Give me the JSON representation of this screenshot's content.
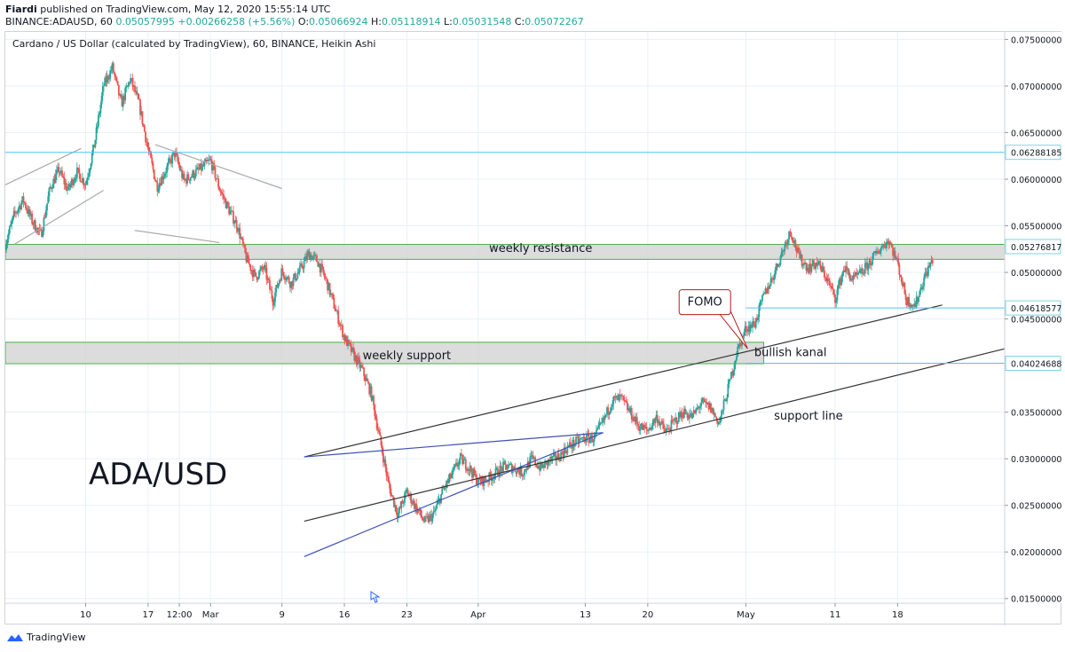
{
  "header": {
    "author": "Fiardi",
    "published_text": "published on TradingView.com, May 12, 2020 15:55:14 UTC"
  },
  "ohlc": {
    "symbol": "BINANCE:ADAUSD, 60",
    "last": "0.05057995",
    "change": "+0.00266258 (+5.56%)",
    "o_label": "O:",
    "o": "0.05066924",
    "h_label": "H:",
    "h": "0.05118914",
    "l_label": "L:",
    "l": "0.05031548",
    "c_label": "C:",
    "c": "0.05072267"
  },
  "footer": {
    "brand": "TradingView"
  },
  "colors": {
    "up": "#26a69a",
    "down": "#ef5350",
    "grid": "#e8f1f8",
    "axis_tag_border": "#7fd3e3"
  },
  "chart_data": {
    "type": "candlestick",
    "title": "Cardano / US Dollar (calculated by TradingView), 60, BINANCE, Heikin Ashi",
    "watermark": "ADA/USD",
    "ylim": [
      0.0145,
      0.0758
    ],
    "y_ticks": [
      "0.07500000",
      "0.07000000",
      "0.06500000",
      "0.06000000",
      "0.05500000",
      "0.05000000",
      "0.04500000",
      "0.03500000",
      "0.03000000",
      "0.02500000",
      "0.02000000",
      "0.01500000"
    ],
    "y_tick_values": [
      0.075,
      0.07,
      0.065,
      0.06,
      0.055,
      0.05,
      0.045,
      0.035,
      0.03,
      0.025,
      0.02,
      0.015
    ],
    "x_ticks": [
      {
        "label": "10",
        "day": 10
      },
      {
        "label": "17",
        "day": 17
      },
      {
        "label": "12:00",
        "day": 20.5
      },
      {
        "label": "Mar",
        "day": 24
      },
      {
        "label": "9",
        "day": 32
      },
      {
        "label": "16",
        "day": 39
      },
      {
        "label": "23",
        "day": 46
      },
      {
        "label": "Apr",
        "day": 54
      },
      {
        "label": "13",
        "day": 66
      },
      {
        "label": "20",
        "day": 73
      },
      {
        "label": "May",
        "day": 84
      },
      {
        "label": "11",
        "day": 94
      },
      {
        "label": "18",
        "day": 101
      }
    ],
    "x_domain_days": [
      1,
      113
    ],
    "price_tags": [
      {
        "label": "0.06288185",
        "value": 0.06288185,
        "line": true
      },
      {
        "label": "0.05276817",
        "value": 0.05276817,
        "line": false
      },
      {
        "label": "0.04618577",
        "value": 0.04618577,
        "line": true
      },
      {
        "label": "0.04024688",
        "value": 0.04024688,
        "line": true
      }
    ],
    "zones": [
      {
        "name": "weekly resistance",
        "from_day": 1,
        "to_day": 113,
        "low": 0.0514,
        "high": 0.053
      },
      {
        "name": "weekly support",
        "from_day": 1,
        "to_day": 86,
        "low": 0.0402,
        "high": 0.0425
      }
    ],
    "annotations": [
      {
        "text": "weekly resistance",
        "day": 61,
        "value": 0.0522
      },
      {
        "text": "weekly support",
        "day": 46,
        "value": 0.0407
      },
      {
        "text": "bullish kanal",
        "day": 89,
        "value": 0.041
      },
      {
        "text": "support line",
        "day": 91,
        "value": 0.0342
      },
      {
        "text": "FOMO",
        "day": 79.5,
        "value": 0.0468
      }
    ],
    "trendlines": [
      {
        "name": "channel-upper",
        "color": "#333333",
        "points": [
          [
            34.5,
            0.0302
          ],
          [
            106,
            0.0465
          ]
        ]
      },
      {
        "name": "channel-lower",
        "color": "#333333",
        "points": [
          [
            34.5,
            0.0233
          ],
          [
            113,
            0.0418
          ]
        ]
      },
      {
        "name": "triangle-top",
        "color": "#3f51b5",
        "points": [
          [
            34.5,
            0.0302
          ],
          [
            68,
            0.0328
          ]
        ]
      },
      {
        "name": "triangle-bottom",
        "color": "#3f51b5",
        "points": [
          [
            34.5,
            0.0195
          ],
          [
            68,
            0.0328
          ]
        ]
      },
      {
        "name": "rising-wedge-upper",
        "color": "#aaaaaa",
        "points": [
          [
            1,
            0.0594
          ],
          [
            9.5,
            0.0633
          ]
        ]
      },
      {
        "name": "rising-wedge-lower",
        "color": "#aaaaaa",
        "points": [
          [
            2,
            0.053
          ],
          [
            12,
            0.0588
          ]
        ]
      },
      {
        "name": "falling-upper",
        "color": "#aaaaaa",
        "points": [
          [
            17.8,
            0.0637
          ],
          [
            32,
            0.059
          ]
        ]
      },
      {
        "name": "falling-lower",
        "color": "#aaaaaa",
        "points": [
          [
            15.5,
            0.0545
          ],
          [
            25,
            0.0532
          ]
        ]
      }
    ],
    "price_path": [
      [
        1,
        0.053
      ],
      [
        2,
        0.0562
      ],
      [
        3,
        0.0578
      ],
      [
        4,
        0.0555
      ],
      [
        5,
        0.054
      ],
      [
        6,
        0.059
      ],
      [
        7,
        0.061
      ],
      [
        8,
        0.0588
      ],
      [
        9,
        0.0608
      ],
      [
        10,
        0.0595
      ],
      [
        11,
        0.0638
      ],
      [
        12,
        0.07
      ],
      [
        13,
        0.072
      ],
      [
        14,
        0.068
      ],
      [
        15,
        0.0708
      ],
      [
        16,
        0.068
      ],
      [
        17,
        0.0632
      ],
      [
        18,
        0.0592
      ],
      [
        19,
        0.061
      ],
      [
        20,
        0.0628
      ],
      [
        21,
        0.0598
      ],
      [
        22,
        0.0605
      ],
      [
        23,
        0.0612
      ],
      [
        24,
        0.062
      ],
      [
        25,
        0.059
      ],
      [
        26,
        0.0568
      ],
      [
        27,
        0.055
      ],
      [
        28,
        0.0515
      ],
      [
        29,
        0.0495
      ],
      [
        30,
        0.0505
      ],
      [
        31,
        0.047
      ],
      [
        32,
        0.0502
      ],
      [
        33,
        0.0488
      ],
      [
        34,
        0.0502
      ],
      [
        35,
        0.052
      ],
      [
        36,
        0.0512
      ],
      [
        37,
        0.049
      ],
      [
        38,
        0.046
      ],
      [
        39,
        0.043
      ],
      [
        40,
        0.0412
      ],
      [
        41,
        0.0395
      ],
      [
        42,
        0.037
      ],
      [
        43,
        0.032
      ],
      [
        44,
        0.027
      ],
      [
        45,
        0.024
      ],
      [
        46,
        0.0265
      ],
      [
        47,
        0.0248
      ],
      [
        48,
        0.0232
      ],
      [
        49,
        0.024
      ],
      [
        50,
        0.0265
      ],
      [
        51,
        0.0282
      ],
      [
        52,
        0.03
      ],
      [
        53,
        0.029
      ],
      [
        54,
        0.0275
      ],
      [
        55,
        0.0278
      ],
      [
        56,
        0.0285
      ],
      [
        57,
        0.0292
      ],
      [
        58,
        0.029
      ],
      [
        59,
        0.0285
      ],
      [
        60,
        0.03
      ],
      [
        61,
        0.029
      ],
      [
        62,
        0.0298
      ],
      [
        63,
        0.0302
      ],
      [
        64,
        0.0312
      ],
      [
        65,
        0.0318
      ],
      [
        66,
        0.0322
      ],
      [
        67,
        0.0322
      ],
      [
        68,
        0.034
      ],
      [
        69,
        0.0362
      ],
      [
        70,
        0.0365
      ],
      [
        71,
        0.035
      ],
      [
        72,
        0.0335
      ],
      [
        73,
        0.033
      ],
      [
        74,
        0.0345
      ],
      [
        75,
        0.0328
      ],
      [
        76,
        0.034
      ],
      [
        77,
        0.035
      ],
      [
        78,
        0.0345
      ],
      [
        79,
        0.036
      ],
      [
        80,
        0.0355
      ],
      [
        81,
        0.0338
      ],
      [
        82,
        0.0375
      ],
      [
        83,
        0.0415
      ],
      [
        84,
        0.044
      ],
      [
        85,
        0.0445
      ],
      [
        86,
        0.0475
      ],
      [
        87,
        0.0495
      ],
      [
        88,
        0.052
      ],
      [
        89,
        0.0545
      ],
      [
        90,
        0.0515
      ],
      [
        91,
        0.0505
      ],
      [
        92,
        0.051
      ],
      [
        93,
        0.0495
      ],
      [
        94,
        0.0472
      ],
      [
        95,
        0.0505
      ],
      [
        96,
        0.0492
      ],
      [
        97,
        0.05
      ],
      [
        98,
        0.0512
      ],
      [
        99,
        0.0525
      ],
      [
        100,
        0.0535
      ],
      [
        101,
        0.051
      ],
      [
        102,
        0.047
      ],
      [
        103,
        0.0465
      ],
      [
        104,
        0.0495
      ],
      [
        105,
        0.0515
      ]
    ]
  }
}
